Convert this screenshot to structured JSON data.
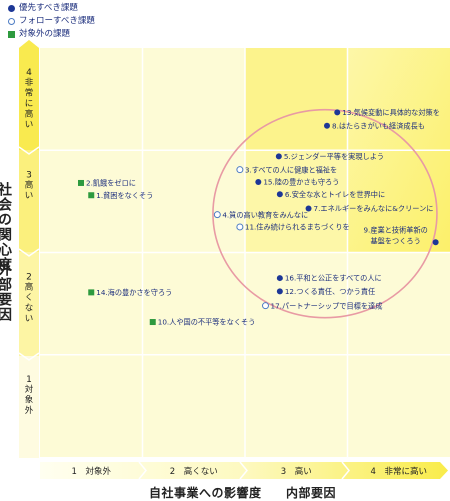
{
  "legend": {
    "priority": "優先すべき課題",
    "follow": "フォローすべき課題",
    "excluded": "対象外の課題"
  },
  "colors": {
    "priority": "#1d3796",
    "follow_border": "#4d7cc4",
    "excluded": "#2e9a3f",
    "text": "#1d2f7d",
    "ellipse": "#e89aa4",
    "bg_light": "#fdfbd6",
    "bg_mid": "#fdf7a8",
    "bg_hot": "#fcf06a",
    "grid": "#ffffff"
  },
  "chart_data": {
    "type": "scatter",
    "xlabel": "自社事業への影響度",
    "xlabel_sub": "内部要因",
    "ylabel": "社会の関心度",
    "ylabel_sub": "外部要因",
    "xlim": [
      0.5,
      4.5
    ],
    "ylim": [
      0.5,
      4.5
    ],
    "x_ticks": [
      {
        "value": 1,
        "label": "1　対象外"
      },
      {
        "value": 2,
        "label": "2　高くない"
      },
      {
        "value": 3,
        "label": "3　高い"
      },
      {
        "value": 4,
        "label": "4　非常に高い"
      }
    ],
    "y_ticks": [
      {
        "value": 4,
        "num": "4",
        "label": "非常に高い"
      },
      {
        "value": 3,
        "num": "3",
        "label": "高い"
      },
      {
        "value": 2,
        "num": "2",
        "label": "高くない"
      },
      {
        "value": 1,
        "num": "1",
        "label": "対象外"
      }
    ],
    "points": [
      {
        "label": "13.気候変動に具体的な対策を",
        "x": 3.4,
        "y": 3.87,
        "category": "priority"
      },
      {
        "label": "8.はたらきがいも経済成長も",
        "x": 3.3,
        "y": 3.74,
        "category": "priority"
      },
      {
        "label": "5.ジェンダー平等を実現しよう",
        "x": 2.83,
        "y": 3.44,
        "category": "priority"
      },
      {
        "label": "3.すべての人に健康と福祉を",
        "x": 2.45,
        "y": 3.31,
        "category": "follow"
      },
      {
        "label": "15.陸の豊かさも守ろう",
        "x": 2.63,
        "y": 3.19,
        "category": "priority"
      },
      {
        "label": "6.安全な水とトイレを世界中に",
        "x": 2.84,
        "y": 3.07,
        "category": "priority"
      },
      {
        "label": "7.エネルギーをみんなに&クリーンに",
        "x": 3.12,
        "y": 2.93,
        "category": "priority"
      },
      {
        "label": "4.質の高い教育をみんなに",
        "x": 2.23,
        "y": 2.87,
        "category": "follow"
      },
      {
        "label": "11.住み続けられるまちづくりを",
        "x": 2.45,
        "y": 2.75,
        "category": "follow"
      },
      {
        "label": "9.産業と技術革新の基盤をつくろう",
        "x": 4.36,
        "y": 2.6,
        "category": "priority"
      },
      {
        "label": "16.平和と公正をすべての人に",
        "x": 2.84,
        "y": 2.25,
        "category": "priority"
      },
      {
        "label": "12.つくる責任、つかう責任",
        "x": 2.84,
        "y": 2.12,
        "category": "priority"
      },
      {
        "label": "17.パートナーシップで目標を達成",
        "x": 2.7,
        "y": 1.98,
        "category": "follow"
      },
      {
        "label": "2.飢餓をゼロに",
        "x": 0.9,
        "y": 3.18,
        "category": "excluded"
      },
      {
        "label": "1.貧困をなくそう",
        "x": 1.0,
        "y": 3.06,
        "category": "excluded"
      },
      {
        "label": "14.海の豊かさを守ろう",
        "x": 1.0,
        "y": 2.11,
        "category": "excluded"
      },
      {
        "label": "10.人や国の不平等をなくそう",
        "x": 1.6,
        "y": 1.82,
        "category": "excluded"
      }
    ]
  }
}
